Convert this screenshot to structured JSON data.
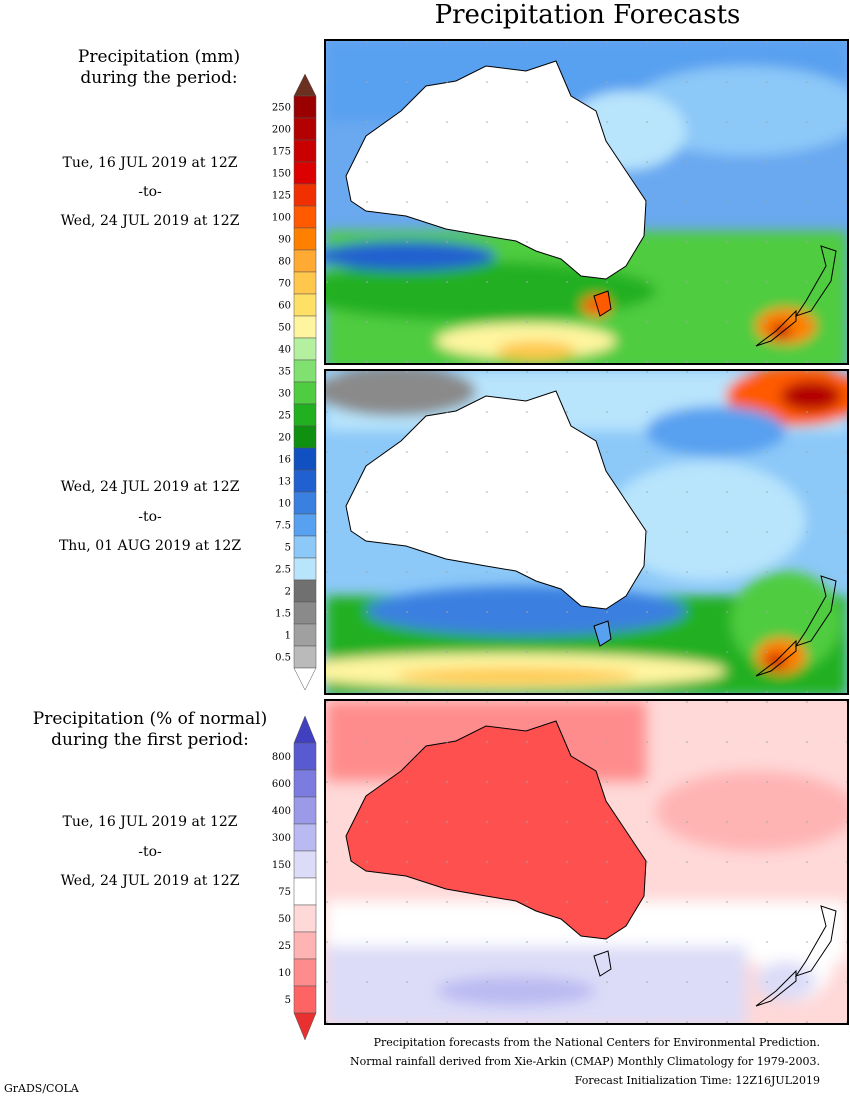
{
  "title": "Precipitation Forecasts",
  "header_mm": {
    "line1": "Precipitation (mm)",
    "line2": "during the period:"
  },
  "period1": {
    "start": "Tue, 16 JUL 2019 at 12Z",
    "to": "-to-",
    "end": "Wed, 24 JUL 2019 at 12Z"
  },
  "period2": {
    "start": "Wed, 24 JUL 2019 at 12Z",
    "to": "-to-",
    "end": "Thu, 01 AUG 2019 at 12Z"
  },
  "header_pct": {
    "line1": "Precipitation (% of normal)",
    "line2": "during the first period:"
  },
  "period3": {
    "start": "Tue, 16 JUL 2019 at 12Z",
    "to": "-to-",
    "end": "Wed, 24 JUL 2019 at 12Z"
  },
  "colorbar_mm": {
    "labels": [
      "250",
      "200",
      "175",
      "150",
      "125",
      "100",
      "90",
      "80",
      "70",
      "60",
      "50",
      "40",
      "35",
      "30",
      "25",
      "20",
      "16",
      "13",
      "10",
      "7.5",
      "5",
      "2.5",
      "2",
      "1.5",
      "1",
      "0.5"
    ],
    "colors": [
      "#9a0000",
      "#b30000",
      "#c80000",
      "#dd0000",
      "#f03000",
      "#ff5a00",
      "#ff8000",
      "#ffaa33",
      "#ffc84d",
      "#ffe066",
      "#fff5a0",
      "#b4f0a0",
      "#80e070",
      "#50cc40",
      "#20b020",
      "#109010",
      "#1050c0",
      "#2060d0",
      "#3a80e0",
      "#58a0f0",
      "#8cc8f8",
      "#b8e4fc",
      "#707070",
      "#8a8a8a",
      "#a0a0a0",
      "#bababa"
    ],
    "top_color": "#6b3020",
    "bottom_color": "#ffffff"
  },
  "colorbar_pct": {
    "labels": [
      "800",
      "600",
      "400",
      "300",
      "150",
      "75",
      "50",
      "25",
      "10",
      "5"
    ],
    "colors": [
      "#5a5ad0",
      "#7b7be0",
      "#9a9ae8",
      "#babaf2",
      "#dcdcf8",
      "#ffffff",
      "#ffd8d8",
      "#ffb4b4",
      "#ff8c8c",
      "#ff6464"
    ],
    "top_color": "#4040c0",
    "bottom_color": "#e83030"
  },
  "footer": {
    "line1": "Precipitation forecasts from the National Centers for Environmental Prediction.",
    "line2": "Normal rainfall derived from Xie-Arkin (CMAP) Monthly Climatology for 1979-2003.",
    "line3": "Forecast Initialization Time: 12Z16JUL2019"
  },
  "credit": "GrADS/COLA"
}
